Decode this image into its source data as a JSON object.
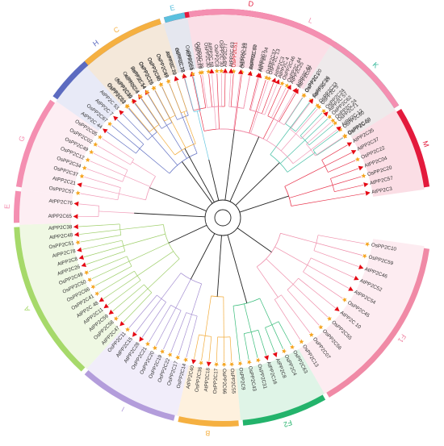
{
  "tree": {
    "clades": [
      {
        "id": "D",
        "label": "D",
        "color": "#e31a3c",
        "sector_color": "#f7c2cf",
        "branch_color": "#e8374f",
        "a0": -17,
        "a1": 32,
        "leaves": [
          "OsPP2C78",
          "AtPP2C6",
          "OsPP2C29",
          "OsPP2C30",
          "OsPP2C8",
          "AtPP2C77",
          "OsPP2C51",
          "OsPP2C23",
          "OsPP2C70",
          "AtPP2C7",
          "OsPP2C37",
          "AtPP2C3",
          "OsPP2C46",
          "AtPP2C25",
          "AtPP2C06"
        ]
      },
      {
        "id": "K",
        "label": "K",
        "color": "#2bb596",
        "sector_color": "#c2ece0",
        "branch_color": "#4cc2a8",
        "a0": 32,
        "a1": 58,
        "leaves": [
          "OsPP2C1",
          "OsPP2C26",
          "OsPP2C23",
          "OsPP2C24",
          "OsPP2C62",
          "OsPP2C71",
          "OsPP2C60",
          "OsPP2C42"
        ]
      },
      {
        "id": "M",
        "label": "M",
        "color": "#e31a3c",
        "sector_color": "#f7c2cf",
        "branch_color": "#e8374f",
        "a0": 58,
        "a1": 82,
        "leaves": [
          "AtPP2C35",
          "AtPP2C37",
          "OsPP2C22",
          "AtPP2C04",
          "OsPP2C20",
          "AtPP2C57",
          "AtPP2C3"
        ]
      },
      {
        "id": "F1",
        "label": "F1",
        "color": "#f08aa6",
        "sector_color": "#fbdde6",
        "branch_color": "#ef8fab",
        "a0": 98,
        "a1": 150,
        "leaves": [
          "OsPP2C10",
          "OsPP2C59",
          "AtPP2C46",
          "AtPP2C52",
          "AtPP2C54",
          "OsPP2C45",
          "AtPP2C 10",
          "OsPP2C55",
          "OsPP2C56",
          "OsPP2C07",
          "OsPP2C13"
        ]
      },
      {
        "id": "F2",
        "label": "F2",
        "color": "#23b36b",
        "sector_color": "#c5ebd4",
        "branch_color": "#3bbd7c",
        "a0": 150,
        "a1": 175,
        "leaves": [
          "OsPP2C63",
          "OsPP2C4",
          "AtPP2C8",
          "AtPP2C16",
          "OsPP2C31",
          "OsPP2C43",
          "OsPP2C9"
        ]
      },
      {
        "id": "B",
        "label": "B",
        "color": "#f5b041",
        "sector_color": "#fde6c3",
        "branch_color": "#f2ac3c",
        "a0": 175,
        "a1": 193,
        "leaves": [
          "OsPP2C55",
          "OsPP2C66",
          "OsPP2C17",
          "AtPP2C18",
          "OsPP2C36",
          "AtPP2C40"
        ]
      },
      {
        "id": "I",
        "label": "I",
        "color": "#b39ddb",
        "sector_color": "#e6def5",
        "branch_color": "#a58fd2",
        "a0": 193,
        "a1": 222,
        "leaves": [
          "OsPP2C14",
          "OsPP2C17",
          "OsPP2C22",
          "OsPP2C19",
          "OsPP2C20",
          "OsPP2C21",
          "AtPP2C28",
          "AtPP2C15",
          "OsPP2C11"
        ]
      },
      {
        "id": "A",
        "label": "A",
        "color": "#a6d96a",
        "sector_color": "#e2f2cc",
        "branch_color": "#9fcf6b",
        "a0": 222,
        "a1": 268,
        "leaves": [
          "AtPP2C47",
          "OsPP2C58",
          "AtPP2C59",
          "AtPP2C11",
          "AtPP2C 48",
          "OsPP2C41",
          "OsPP2C66",
          "OsPP2C50",
          "OsPP2C49",
          "AtPP2C26",
          "AtPP2C8",
          "AtPP2C78",
          "OsPP2C51",
          "AtPP2C48",
          "AtPP2C38"
        ]
      },
      {
        "id": "E",
        "label": "E",
        "color": "#f48fb1",
        "sector_color": "#fce0ea",
        "branch_color": "#f19cb9",
        "a0": 268,
        "a1": 278,
        "leaves": [
          "AtPP2C65",
          "AtPP2C76"
        ]
      },
      {
        "id": "G",
        "label": "G",
        "color": "#f48fb1",
        "sector_color": "#fce0ea",
        "branch_color": "#f19cb9",
        "a0": 278,
        "a1": 305,
        "leaves": [
          "OsPP2C57",
          "AtPP2C21",
          "OsPP2C37",
          "OsPP2C34",
          "OsPP2C12",
          "OsPP2C49",
          "OsPP2C02",
          "OsPP2C05"
        ]
      },
      {
        "id": "H",
        "label": "H",
        "color": "#5c6bc0",
        "sector_color": "#d5d9f0",
        "branch_color": "#6574c4",
        "a0": 305,
        "a1": 343,
        "leaves": [
          "AtPP2C 44",
          "OsPP2C67",
          "AtPP2C 7",
          "AtPP2C 53",
          "OsPP2C03",
          "OsPP2C33",
          "AtPP2C 4",
          "AtPP2C 14",
          "OsPP2C15",
          "OsPP2C40",
          "OsPP2C69",
          "AtPP2C 79"
        ]
      },
      {
        "id": "E2",
        "label": "E",
        "color": "#5bc0de",
        "sector_color": "#d3eef7",
        "branch_color": "#66c6e0",
        "a0": 343,
        "a1": 350,
        "leaves": [
          "AtPP2C 18",
          "OsPP2C65"
        ]
      },
      {
        "id": "L",
        "label": "L",
        "color": "#f48fb1",
        "sector_color": "#fce0ea",
        "branch_color": "#f19cb9",
        "a0": 350,
        "a1": 418,
        "leaves": [
          "OsPP2C 39",
          "AtPP2C 58",
          "OsPP2C 30",
          "AtPP2C 63",
          "AtPP2C 19",
          "AtPP2C 67",
          "AtPP2C 34",
          "OsPP2C 13",
          "AtPP2C 4",
          "OsPP2C 44",
          "AtPP2C 61",
          "OsPP2C 20",
          "AtPP2C 35",
          "OsPP2C 5",
          "AtPP2C 57",
          "OsPP2C 24",
          "AtPP2C 12",
          "OsPP2C 53"
        ]
      },
      {
        "id": "C",
        "label": "C",
        "color": "#f5b041",
        "sector_color": "#fde6c3",
        "branch_color": "#f2ac3c",
        "a0": -42,
        "a1": -17,
        "leaves": [
          "OsPP2C52",
          "AtPP2C30",
          "OsPP2C56",
          "OsPP2C54",
          "OsPP2C26",
          "OsPP2C55",
          "OsPP2C45",
          "AtPP2C32"
        ]
      }
    ]
  }
}
